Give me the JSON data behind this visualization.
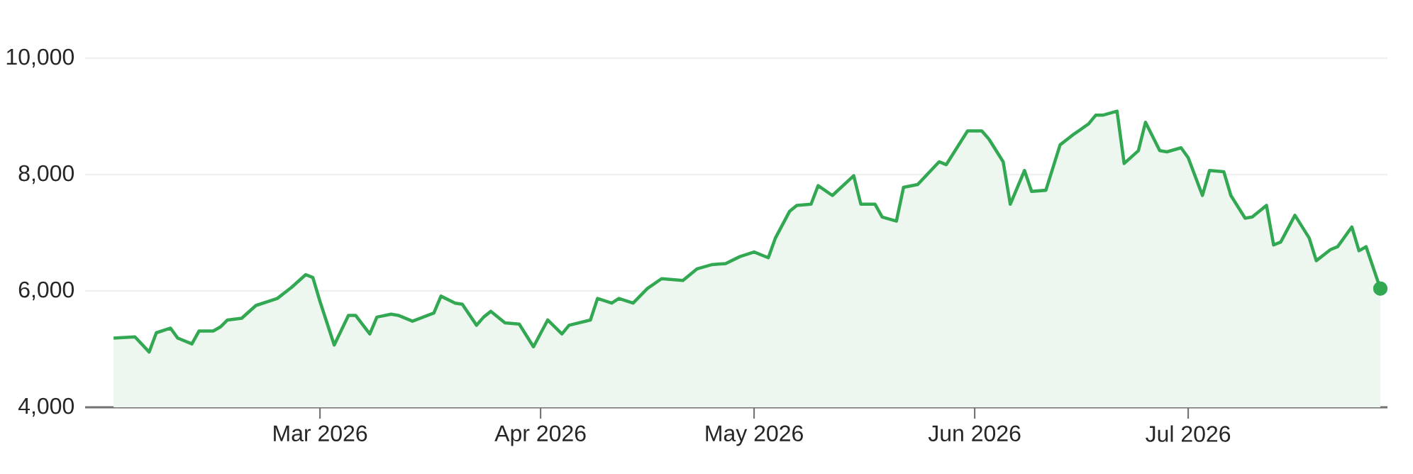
{
  "chart_data": {
    "type": "area",
    "x": [
      "2026-01-31",
      "2026-02-03",
      "2026-02-05",
      "2026-02-06",
      "2026-02-08",
      "2026-02-09",
      "2026-02-11",
      "2026-02-12",
      "2026-02-14",
      "2026-02-15",
      "2026-02-16",
      "2026-02-18",
      "2026-02-20",
      "2026-02-23",
      "2026-02-25",
      "2026-02-27",
      "2026-02-28",
      "2026-03-01",
      "2026-03-03",
      "2026-03-05",
      "2026-03-06",
      "2026-03-08",
      "2026-03-09",
      "2026-03-11",
      "2026-03-12",
      "2026-03-14",
      "2026-03-17",
      "2026-03-18",
      "2026-03-20",
      "2026-03-21",
      "2026-03-23",
      "2026-03-24",
      "2026-03-25",
      "2026-03-27",
      "2026-03-29",
      "2026-03-31",
      "2026-04-02",
      "2026-04-04",
      "2026-04-05",
      "2026-04-08",
      "2026-04-09",
      "2026-04-11",
      "2026-04-12",
      "2026-04-14",
      "2026-04-16",
      "2026-04-18",
      "2026-04-21",
      "2026-04-23",
      "2026-04-25",
      "2026-04-27",
      "2026-04-29",
      "2026-05-01",
      "2026-05-03",
      "2026-05-04",
      "2026-05-06",
      "2026-05-07",
      "2026-05-09",
      "2026-05-10",
      "2026-05-12",
      "2026-05-15",
      "2026-05-16",
      "2026-05-18",
      "2026-05-19",
      "2026-05-21",
      "2026-05-22",
      "2026-05-24",
      "2026-05-27",
      "2026-05-28",
      "2026-05-31",
      "2026-06-02",
      "2026-06-03",
      "2026-06-05",
      "2026-06-06",
      "2026-06-08",
      "2026-06-09",
      "2026-06-11",
      "2026-06-13",
      "2026-06-15",
      "2026-06-17",
      "2026-06-18",
      "2026-06-19",
      "2026-06-21",
      "2026-06-22",
      "2026-06-24",
      "2026-06-25",
      "2026-06-27",
      "2026-06-28",
      "2026-06-30",
      "2026-07-01",
      "2026-07-03",
      "2026-07-04",
      "2026-07-06",
      "2026-07-07",
      "2026-07-09",
      "2026-07-10",
      "2026-07-12",
      "2026-07-13",
      "2026-07-14",
      "2026-07-16",
      "2026-07-18",
      "2026-07-19",
      "2026-07-21",
      "2026-07-22",
      "2026-07-24",
      "2026-07-25",
      "2026-07-26",
      "2026-07-28"
    ],
    "series": [
      {
        "color": "#33a852",
        "values": [
          5190,
          5210,
          4950,
          5280,
          5360,
          5190,
          5090,
          5310,
          5310,
          5380,
          5500,
          5530,
          5750,
          5870,
          6060,
          6280,
          6230,
          5820,
          5070,
          5580,
          5580,
          5260,
          5550,
          5600,
          5580,
          5480,
          5620,
          5910,
          5790,
          5770,
          5410,
          5550,
          5650,
          5450,
          5430,
          5040,
          5500,
          5260,
          5410,
          5500,
          5870,
          5790,
          5870,
          5790,
          6040,
          6210,
          6180,
          6380,
          6450,
          6470,
          6590,
          6670,
          6570,
          6910,
          7370,
          7470,
          7490,
          7810,
          7640,
          7980,
          7490,
          7490,
          7270,
          7200,
          7780,
          7830,
          8220,
          8170,
          8750,
          8750,
          8610,
          8220,
          7490,
          8070,
          7710,
          7730,
          8510,
          8700,
          8870,
          9020,
          9020,
          9090,
          8190,
          8410,
          8900,
          8410,
          8390,
          8460,
          8290,
          7640,
          8070,
          8050,
          7640,
          7250,
          7270,
          7470,
          6790,
          6840,
          7300,
          6910,
          6520,
          6710,
          6760,
          7100,
          6690,
          6760,
          6040
        ]
      },
      {
        "type": "scatter",
        "color": "#33a852",
        "marker": "circle",
        "x": [
          "2026-07-28"
        ],
        "values": [
          6040
        ]
      }
    ],
    "xlim": [
      "2026-01-27",
      "2026-07-29"
    ],
    "xticks": [
      {
        "value": "2026-03-01",
        "label": "Mar 2026"
      },
      {
        "value": "2026-04-01",
        "label": "Apr 2026"
      },
      {
        "value": "2026-05-01",
        "label": "May 2026"
      },
      {
        "value": "2026-06-01",
        "label": "Jun 2026"
      },
      {
        "value": "2026-07-01",
        "label": "Jul 2026"
      }
    ],
    "ylim": [
      4000,
      10000
    ],
    "yticks": [
      {
        "value": 4000,
        "label": "4,000"
      },
      {
        "value": 6000,
        "label": "6,000"
      },
      {
        "value": 8000,
        "label": "8,000"
      },
      {
        "value": 10000,
        "label": "10,000"
      }
    ],
    "grid": "y",
    "marker": "none",
    "line_style": "solid"
  }
}
